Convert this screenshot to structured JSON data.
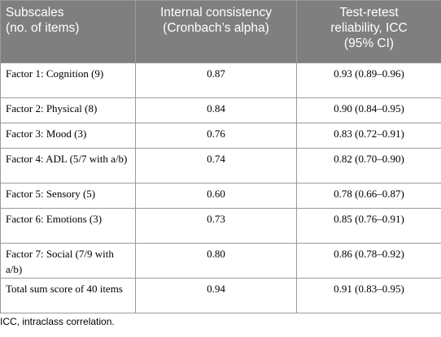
{
  "table": {
    "headers": [
      "Subscales\n(no. of items)",
      "Internal consistency\n(Cronbach’s alpha)",
      "Test-retest\nreliability, ICC\n(95% CI)"
    ],
    "rows": [
      {
        "subscale": "Factor 1: Cognition (9)",
        "alpha": "0.87",
        "icc": "0.93 (0.89–0.96)"
      },
      {
        "subscale": "Factor 2: Physical (8)",
        "alpha": "0.84",
        "icc": "0.90 (0.84–0.95)"
      },
      {
        "subscale": "Factor 3: Mood (3)",
        "alpha": "0.76",
        "icc": "0.83 (0.72–0.91)"
      },
      {
        "subscale": "Factor 4: ADL (5/7 with a/b)",
        "alpha": "0.74",
        "icc": "0.82 (0.70–0.90)"
      },
      {
        "subscale": "Factor 5: Sensory (5)",
        "alpha": "0.60",
        "icc": "0.78 (0.66–0.87)"
      },
      {
        "subscale": "Factor 6: Emotions (3)",
        "alpha": "0.73",
        "icc": "0.85 (0.76–0.91)"
      },
      {
        "subscale": "Factor 7: Social (7/9 with a/b)",
        "alpha": "0.80",
        "icc": "0.86 (0.78–0.92)"
      },
      {
        "subscale": "Total sum score of 40 items",
        "alpha": "0.94",
        "icc": "0.91 (0.83–0.95)"
      }
    ]
  },
  "footnote": "ICC, intraclass correlation."
}
